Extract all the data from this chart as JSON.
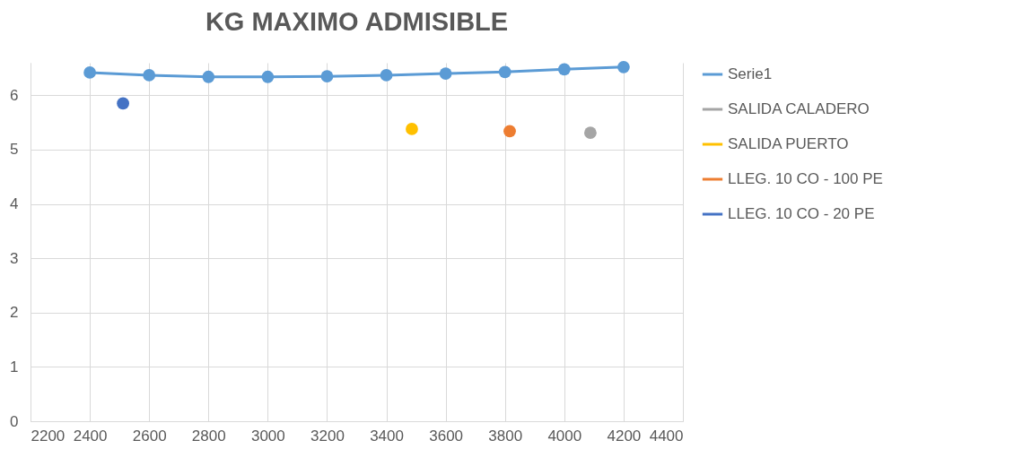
{
  "chart_data": {
    "type": "line",
    "title": "KG MAXIMO ADMISIBLE",
    "xlim": [
      2200,
      4400
    ],
    "xticks": [
      2200,
      2400,
      2600,
      2800,
      3000,
      3200,
      3400,
      3600,
      3800,
      4000,
      4200,
      4400
    ],
    "ylim": [
      0,
      6.6
    ],
    "yticks": [
      0,
      1,
      2,
      3,
      4,
      5,
      6
    ],
    "grid": true,
    "legend": "right",
    "marker": "circle",
    "line_style": "solid",
    "series": [
      {
        "name": "Serie1",
        "color": "#5b9bd5",
        "x": [
          2400,
          2600,
          2800,
          3000,
          3200,
          3400,
          3600,
          3800,
          4000,
          4200
        ],
        "values": [
          6.42,
          6.37,
          6.34,
          6.34,
          6.35,
          6.37,
          6.4,
          6.43,
          6.48,
          6.52
        ]
      },
      {
        "name": "SALIDA CALADERO",
        "color": "#a5a5a5",
        "x": [
          4088
        ],
        "values": [
          5.31
        ]
      },
      {
        "name": "SALIDA PUERTO",
        "color": "#ffc000",
        "x": [
          3486
        ],
        "values": [
          5.38
        ]
      },
      {
        "name": "LLEG. 10 CO - 100 PE",
        "color": "#ed7d31",
        "x": [
          3816
        ],
        "values": [
          5.34
        ]
      },
      {
        "name": "LLEG. 10 CO - 20 PE",
        "color": "#4472c4",
        "x": [
          2512
        ],
        "values": [
          5.85
        ]
      }
    ]
  }
}
